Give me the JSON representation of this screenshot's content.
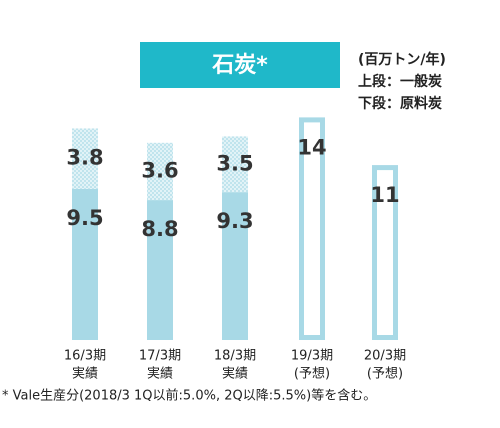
{
  "chart_data": {
    "type": "stacked-bar",
    "title": "石炭*",
    "unit": "(百万トン/年)",
    "categories": [
      [
        "16/3期",
        "実績"
      ],
      [
        "17/3期",
        "実績"
      ],
      [
        "18/3期",
        "実績"
      ],
      [
        "19/3期",
        "(予想)"
      ],
      [
        "20/3期",
        "(予想)"
      ]
    ],
    "series": [
      {
        "name": "下段：原料炭",
        "color": "#a8d9e6",
        "values": [
          9.5,
          8.8,
          9.3,
          null,
          null
        ]
      },
      {
        "name": "上段：一般炭",
        "color": "#a8d9e6",
        "values": [
          3.8,
          3.6,
          3.5,
          null,
          null
        ]
      }
    ],
    "forecast_values": [
      null,
      null,
      null,
      14,
      11
    ],
    "forecast_color": "#a8d9e6",
    "title_color": "#1fb8c9",
    "footnote": "* Vale生産分(2018/3 1Q以前:5.0%, 2Q以降:5.5%)等を含む。"
  }
}
